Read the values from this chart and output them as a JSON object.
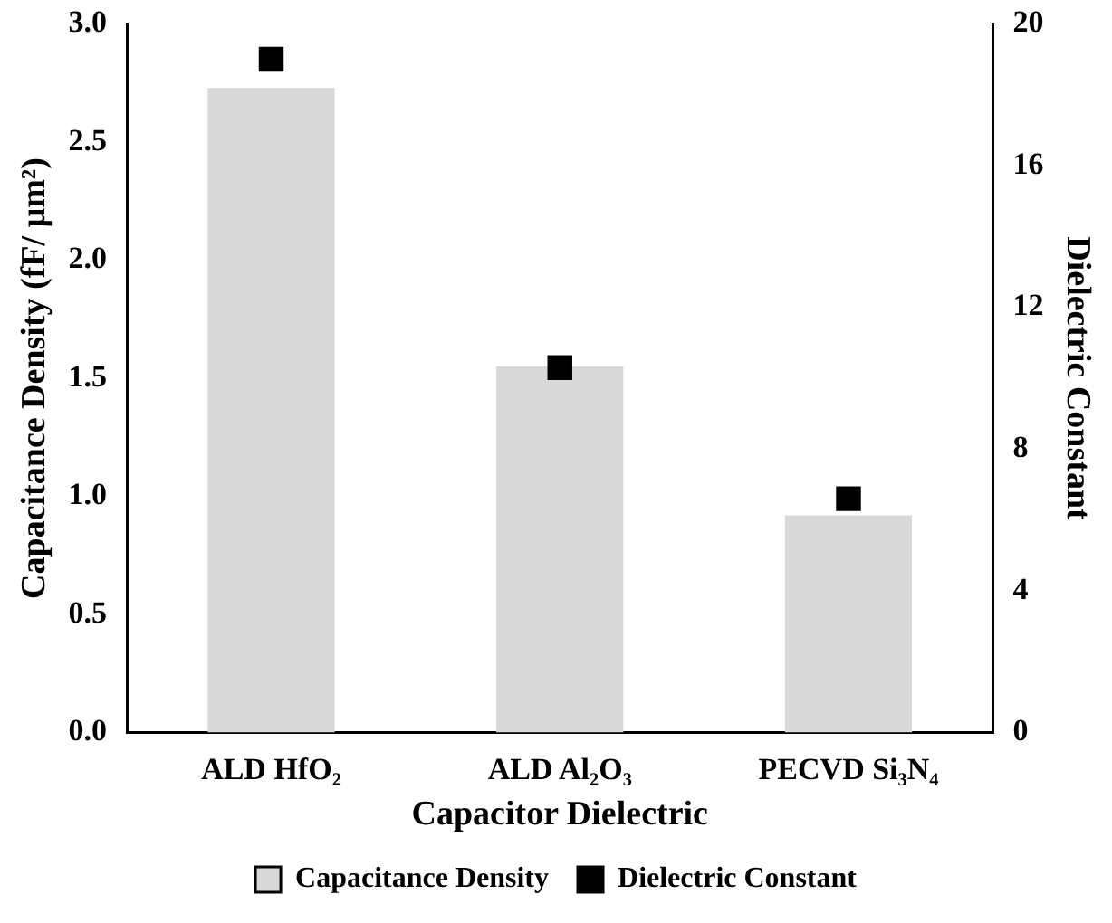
{
  "chart_data": {
    "type": "bar",
    "xlabel": "Capacitor Dielectric",
    "ylabel": "Capacitance Density (fF/ μm²)",
    "y2label": "Dielectric Constant",
    "categories": [
      "ALD HfO₂",
      "ALD Al₂O₃",
      "PECVD Si₃N₄"
    ],
    "series": [
      {
        "name": "Capacitance Density",
        "color": "#d9d9d9",
        "values": [
          2.73,
          1.55,
          0.92
        ]
      },
      {
        "name": "Dielectric Constant",
        "type": "scatter",
        "axis": "y2",
        "marker": "square",
        "color": "#000000",
        "values": [
          19.0,
          10.3,
          6.6
        ]
      }
    ],
    "ylim": [
      0,
      3
    ],
    "yticks": [
      {
        "value": 0,
        "label": "0.0"
      },
      {
        "value": 0.5,
        "label": "0.5"
      },
      {
        "value": 1,
        "label": "1.0"
      },
      {
        "value": 1.5,
        "label": "1.5"
      },
      {
        "value": 2,
        "label": "2.0"
      },
      {
        "value": 2.5,
        "label": "2.5"
      },
      {
        "value": 3,
        "label": "3.0"
      }
    ],
    "y2lim": [
      0,
      20
    ],
    "y2ticks": [
      0,
      4,
      8,
      12,
      16,
      20
    ],
    "legend": "bottom"
  }
}
